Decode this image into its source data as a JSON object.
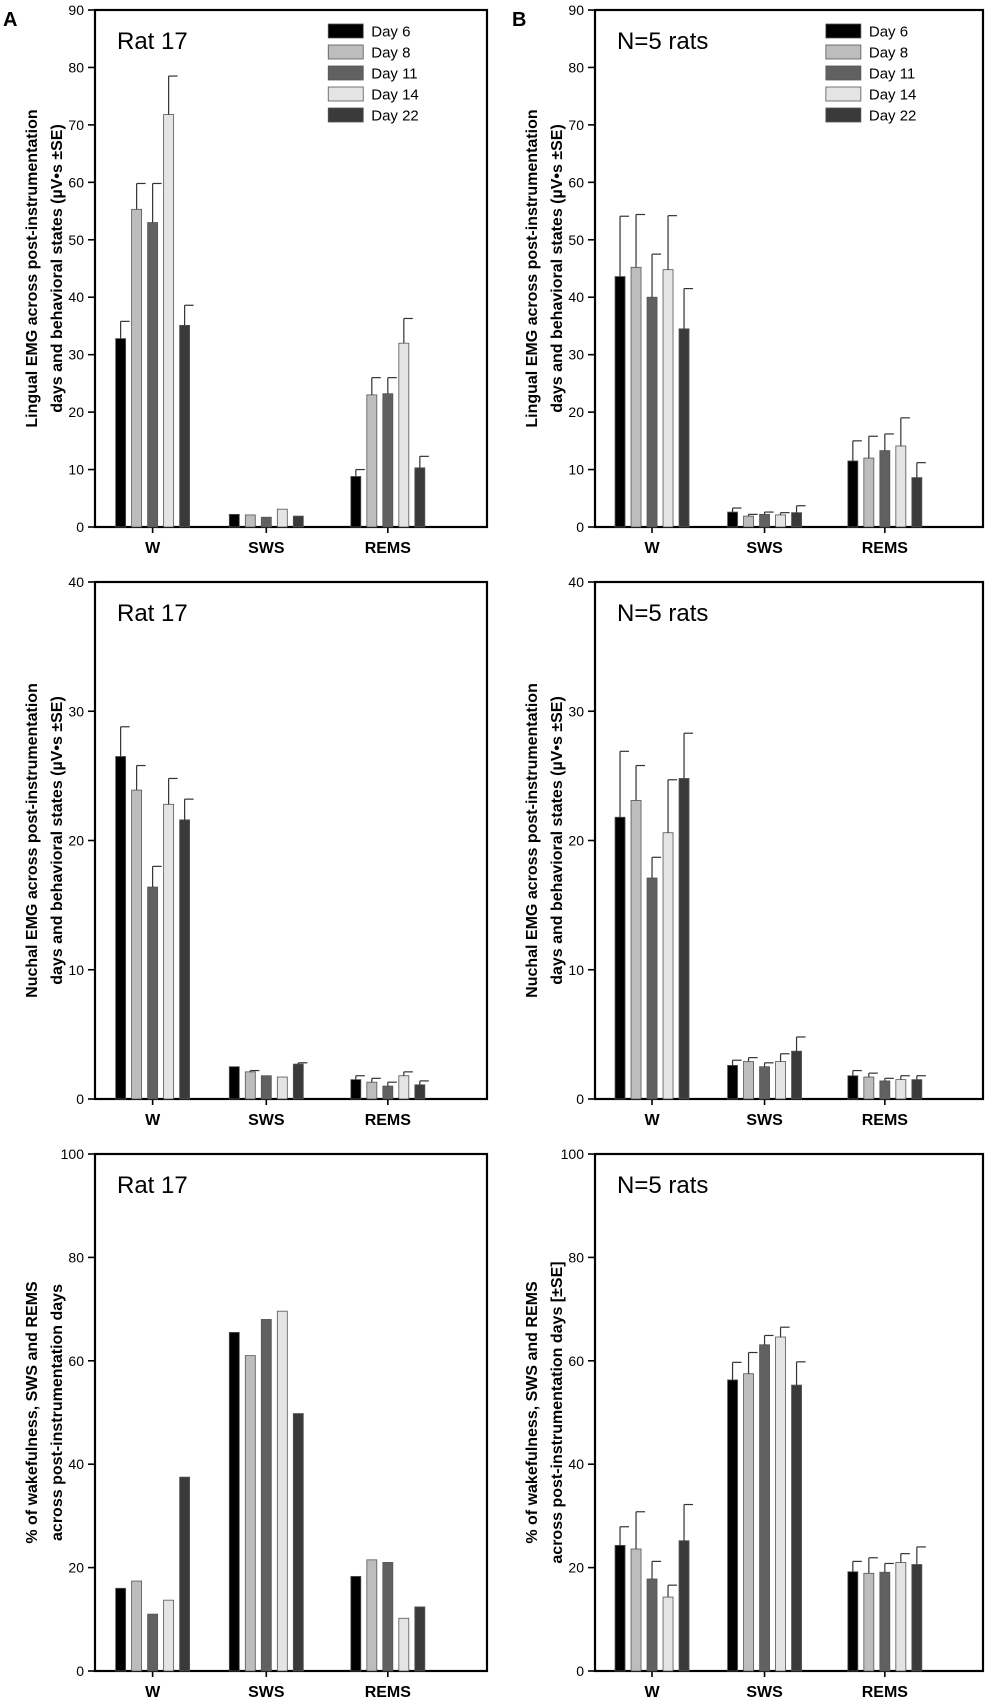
{
  "panel_letters": [
    "A",
    "B"
  ],
  "legend_entries": [
    "Day 6",
    "Day 8",
    "Day 11",
    "Day 14",
    "Day 22"
  ],
  "colors": {
    "day_colors": [
      "#000000",
      "#bdbdbd",
      "#616161",
      "#e4e4e4",
      "#3a3a3a"
    ],
    "bar_stroke": "#555555",
    "axis": "#000000"
  },
  "chart_data": [
    {
      "type": "bar",
      "panel": "A",
      "annotation": "Rat 17",
      "ylabel_lines": [
        "Lingual EMG across post-instrumentation",
        "days and behavioral states (µV•s ±SE)"
      ],
      "categories": [
        "W",
        "SWS",
        "REMS"
      ],
      "ylim": [
        0,
        90
      ],
      "yticks": [
        0,
        10,
        20,
        30,
        40,
        50,
        60,
        70,
        80,
        90
      ],
      "legend": true,
      "series": [
        {
          "name": "Day 6",
          "values": [
            32.8,
            2.2,
            8.8
          ],
          "errors": [
            3.0,
            0,
            1.2
          ]
        },
        {
          "name": "Day 8",
          "values": [
            55.3,
            2.1,
            23.0
          ],
          "errors": [
            4.5,
            0,
            3.0
          ]
        },
        {
          "name": "Day 11",
          "values": [
            53.0,
            1.7,
            23.2
          ],
          "errors": [
            6.8,
            0,
            2.8
          ]
        },
        {
          "name": "Day 14",
          "values": [
            71.8,
            3.1,
            32.0
          ],
          "errors": [
            6.7,
            0,
            4.3
          ]
        },
        {
          "name": "Day 22",
          "values": [
            35.1,
            1.9,
            10.3
          ],
          "errors": [
            3.5,
            0,
            2.0
          ]
        }
      ]
    },
    {
      "type": "bar",
      "panel": "B",
      "annotation": "N=5 rats",
      "ylabel_lines": [
        "Lingual EMG across post-instrumentation",
        "days and behavioral states (µV•s ±SE)"
      ],
      "categories": [
        "W",
        "SWS",
        "REMS"
      ],
      "ylim": [
        0,
        90
      ],
      "yticks": [
        0,
        10,
        20,
        30,
        40,
        50,
        60,
        70,
        80,
        90
      ],
      "legend": true,
      "series": [
        {
          "name": "Day 6",
          "values": [
            43.6,
            2.6,
            11.5
          ],
          "errors": [
            10.5,
            0.7,
            3.5
          ]
        },
        {
          "name": "Day 8",
          "values": [
            45.2,
            1.9,
            12.0
          ],
          "errors": [
            9.2,
            0.3,
            3.8
          ]
        },
        {
          "name": "Day 11",
          "values": [
            40.0,
            2.2,
            13.3
          ],
          "errors": [
            7.5,
            0.4,
            2.9
          ]
        },
        {
          "name": "Day 14",
          "values": [
            44.8,
            2.1,
            14.1
          ],
          "errors": [
            9.4,
            0.4,
            4.9
          ]
        },
        {
          "name": "Day 22",
          "values": [
            34.5,
            2.5,
            8.6
          ],
          "errors": [
            7.0,
            1.2,
            2.6
          ]
        }
      ]
    },
    {
      "type": "bar",
      "panel": "A",
      "annotation": "Rat 17",
      "ylabel_lines": [
        "Nuchal EMG across post-instrumentation",
        "days and behavioral states (µV•s ±SE)"
      ],
      "categories": [
        "W",
        "SWS",
        "REMS"
      ],
      "ylim": [
        0,
        40
      ],
      "yticks": [
        0,
        10,
        20,
        30,
        40
      ],
      "legend": false,
      "series": [
        {
          "name": "Day 6",
          "values": [
            26.5,
            2.5,
            1.5
          ],
          "errors": [
            2.3,
            0,
            0.3
          ]
        },
        {
          "name": "Day 8",
          "values": [
            23.9,
            2.1,
            1.3
          ],
          "errors": [
            1.9,
            0.1,
            0.3
          ]
        },
        {
          "name": "Day 11",
          "values": [
            16.4,
            1.8,
            1.0
          ],
          "errors": [
            1.6,
            0,
            0.3
          ]
        },
        {
          "name": "Day 14",
          "values": [
            22.8,
            1.7,
            1.8
          ],
          "errors": [
            2.0,
            0,
            0.3
          ]
        },
        {
          "name": "Day 22",
          "values": [
            21.6,
            2.7,
            1.1
          ],
          "errors": [
            1.6,
            0.1,
            0.3
          ]
        }
      ]
    },
    {
      "type": "bar",
      "panel": "B",
      "annotation": "N=5 rats",
      "ylabel_lines": [
        "Nuchal EMG across post-instrumentation",
        "days and behavioral states (µV•s ±SE)"
      ],
      "categories": [
        "W",
        "SWS",
        "REMS"
      ],
      "ylim": [
        0,
        40
      ],
      "yticks": [
        0,
        10,
        20,
        30,
        40
      ],
      "legend": false,
      "series": [
        {
          "name": "Day 6",
          "values": [
            21.8,
            2.6,
            1.8
          ],
          "errors": [
            5.1,
            0.4,
            0.4
          ]
        },
        {
          "name": "Day 8",
          "values": [
            23.1,
            2.9,
            1.7
          ],
          "errors": [
            2.7,
            0.3,
            0.3
          ]
        },
        {
          "name": "Day 11",
          "values": [
            17.1,
            2.5,
            1.4
          ],
          "errors": [
            1.6,
            0.3,
            0.2
          ]
        },
        {
          "name": "Day 14",
          "values": [
            20.6,
            2.9,
            1.5
          ],
          "errors": [
            4.1,
            0.6,
            0.3
          ]
        },
        {
          "name": "Day 22",
          "values": [
            24.8,
            3.7,
            1.5
          ],
          "errors": [
            3.5,
            1.1,
            0.3
          ]
        }
      ]
    },
    {
      "type": "bar",
      "panel": "A",
      "annotation": "Rat 17",
      "ylabel_lines": [
        "% of wakefulness, SWS and REMS",
        "across post-instrumentation days"
      ],
      "categories": [
        "W",
        "SWS",
        "REMS"
      ],
      "ylim": [
        0,
        100
      ],
      "yticks": [
        0,
        20,
        40,
        60,
        80,
        100
      ],
      "legend": false,
      "series": [
        {
          "name": "Day 6",
          "values": [
            16.0,
            65.5,
            18.3
          ],
          "errors": [
            0,
            0,
            0
          ]
        },
        {
          "name": "Day 8",
          "values": [
            17.4,
            61.0,
            21.5
          ],
          "errors": [
            0,
            0,
            0
          ]
        },
        {
          "name": "Day 11",
          "values": [
            11.0,
            68.0,
            21.0
          ],
          "errors": [
            0,
            0,
            0
          ]
        },
        {
          "name": "Day 14",
          "values": [
            13.7,
            69.6,
            10.2
          ],
          "errors": [
            0,
            0,
            0
          ]
        },
        {
          "name": "Day 22",
          "values": [
            37.5,
            49.8,
            12.4
          ],
          "errors": [
            0,
            0,
            0
          ]
        }
      ]
    },
    {
      "type": "bar",
      "panel": "B",
      "annotation": "N=5 rats",
      "ylabel_lines": [
        "% of wakefulness, SWS and REMS",
        "across post-instrumentation days  [±SE]"
      ],
      "categories": [
        "W",
        "SWS",
        "REMS"
      ],
      "ylim": [
        0,
        100
      ],
      "yticks": [
        0,
        20,
        40,
        60,
        80,
        100
      ],
      "legend": false,
      "series": [
        {
          "name": "Day 6",
          "values": [
            24.3,
            56.3,
            19.2
          ],
          "errors": [
            3.6,
            3.4,
            2.0
          ]
        },
        {
          "name": "Day 8",
          "values": [
            23.6,
            57.5,
            18.9
          ],
          "errors": [
            7.2,
            4.1,
            3.0
          ]
        },
        {
          "name": "Day 11",
          "values": [
            17.8,
            63.1,
            19.1
          ],
          "errors": [
            3.4,
            1.8,
            1.7
          ]
        },
        {
          "name": "Day 14",
          "values": [
            14.3,
            64.6,
            21.0
          ],
          "errors": [
            2.3,
            1.9,
            1.7
          ]
        },
        {
          "name": "Day 22",
          "values": [
            25.2,
            55.3,
            20.6
          ],
          "errors": [
            7.0,
            4.5,
            3.4
          ]
        }
      ]
    }
  ]
}
